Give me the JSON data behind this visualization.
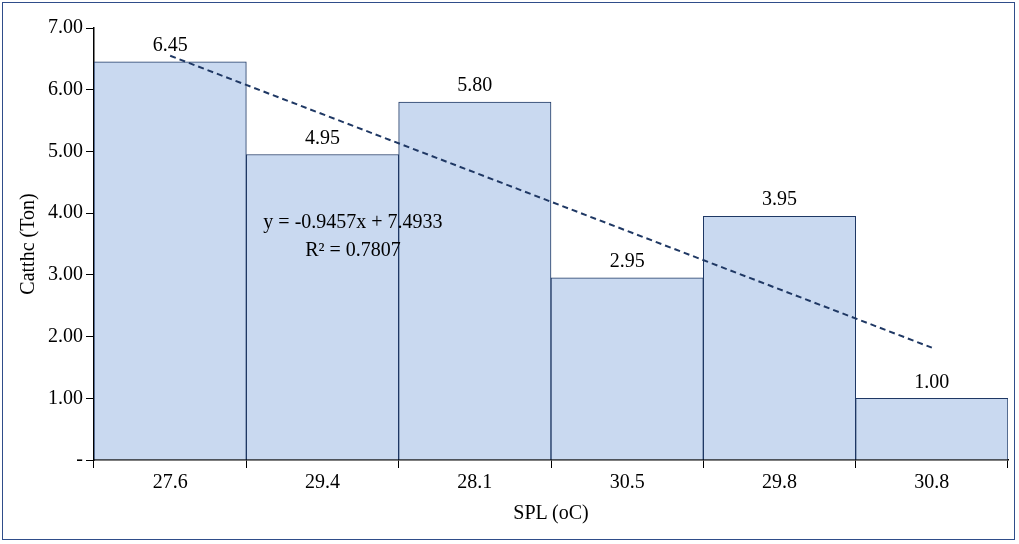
{
  "chart_data": {
    "type": "bar",
    "xlabel": "SPL (oC)",
    "ylabel": "Catthc (Ton)",
    "categories": [
      "27.6",
      "29.4",
      "28.1",
      "30.5",
      "29.8",
      "30.8"
    ],
    "series": [
      {
        "color": "#c9d9f0",
        "values": [
          6.45,
          4.95,
          5.8,
          2.95,
          3.95,
          1.0
        ],
        "value_labels": [
          "6.45",
          "4.95",
          "5.80",
          "2.95",
          "3.95",
          "1.00"
        ]
      },
      {
        "type": "line",
        "color": "#1f3864",
        "line_style": "dashed",
        "x": [
          "27.6",
          "30.8"
        ],
        "values": [
          6.55,
          1.82
        ]
      }
    ],
    "ylim": [
      0,
      7
    ],
    "yticks": [
      {
        "value": 0,
        "label": "-"
      },
      {
        "value": 1,
        "label": "1.00"
      },
      {
        "value": 2,
        "label": "2.00"
      },
      {
        "value": 3,
        "label": "3.00"
      },
      {
        "value": 4,
        "label": "4.00"
      },
      {
        "value": 5,
        "label": "5.00"
      },
      {
        "value": 6,
        "label": "6.00"
      },
      {
        "value": 7,
        "label": "7.00"
      }
    ],
    "annotations": [
      "y = -0.9457x + 7.4933",
      "R² = 0.7807"
    ],
    "grid": false,
    "legend": false
  }
}
